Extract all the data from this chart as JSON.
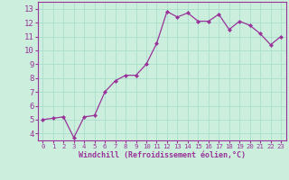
{
  "x": [
    0,
    1,
    2,
    3,
    4,
    5,
    6,
    7,
    8,
    9,
    10,
    11,
    12,
    13,
    14,
    15,
    16,
    17,
    18,
    19,
    20,
    21,
    22,
    23
  ],
  "y": [
    5.0,
    5.1,
    5.2,
    3.7,
    5.2,
    5.3,
    7.0,
    7.8,
    8.2,
    8.2,
    9.0,
    10.5,
    12.8,
    12.4,
    12.7,
    12.1,
    12.1,
    12.6,
    11.5,
    12.1,
    11.8,
    11.2,
    10.4,
    11.0
  ],
  "line_color": "#993399",
  "marker": "D",
  "marker_size": 2.0,
  "xlabel": "Windchill (Refroidissement éolien,°C)",
  "ylim": [
    3.5,
    13.5
  ],
  "xlim": [
    -0.5,
    23.5
  ],
  "yticks": [
    4,
    5,
    6,
    7,
    8,
    9,
    10,
    11,
    12,
    13
  ],
  "xticks": [
    0,
    1,
    2,
    3,
    4,
    5,
    6,
    7,
    8,
    9,
    10,
    11,
    12,
    13,
    14,
    15,
    16,
    17,
    18,
    19,
    20,
    21,
    22,
    23
  ],
  "bg_color": "#cceedd",
  "grid_color": "#aaddcc",
  "tick_color": "#993399",
  "label_color": "#993399",
  "axis_color": "#993399",
  "xlabel_fontsize": 6.0,
  "ytick_fontsize": 6.5,
  "xtick_fontsize": 5.2
}
